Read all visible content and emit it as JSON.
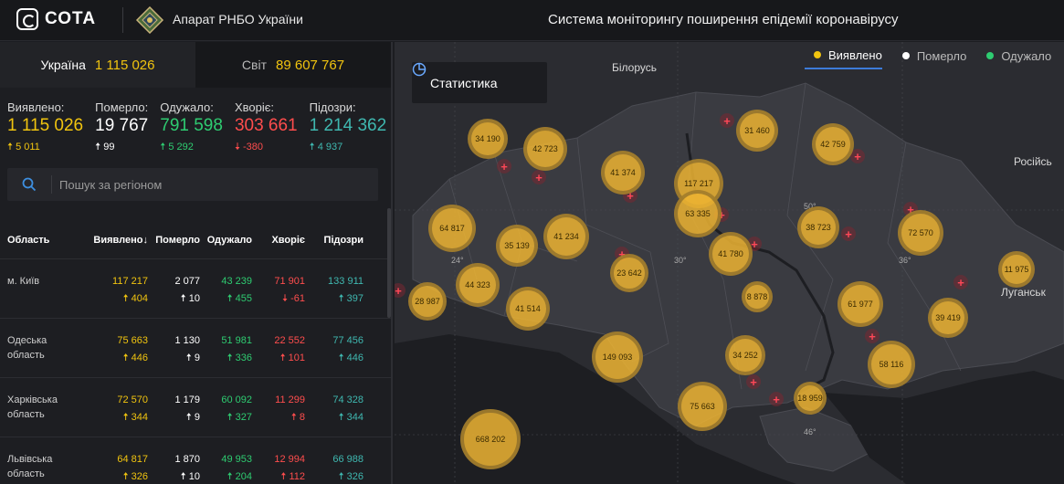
{
  "header": {
    "logo_text": "СОТА",
    "org": "Апарат РНБО України",
    "title": "Система моніторингу поширення епідемії коронавірусу"
  },
  "scope_tabs": [
    {
      "label": "Україна",
      "value": "1 115 026",
      "active": true
    },
    {
      "label": "Світ",
      "value": "89 607 767",
      "active": false
    }
  ],
  "stats": [
    {
      "title": "Виявлено:",
      "value": "1 115 026",
      "delta": "5 011",
      "dir": "up",
      "color": "#f1c40f"
    },
    {
      "title": "Померло:",
      "value": "19 767",
      "delta": "99",
      "dir": "up",
      "color": "#ffffff"
    },
    {
      "title": "Одужало:",
      "value": "791 598",
      "delta": "5 292",
      "dir": "up",
      "color": "#2ecc71"
    },
    {
      "title": "Хворіє:",
      "value": "303 661",
      "delta": "-380",
      "dir": "down",
      "color": "#ff4d4d"
    },
    {
      "title": "Підозри:",
      "value": "1 214 362",
      "delta": "4 937",
      "dir": "up",
      "color": "#3fb8b0"
    }
  ],
  "search": {
    "placeholder": "Пошук за регіоном"
  },
  "table": {
    "headers": [
      "Область",
      "Виявлено",
      "Померло",
      "Одужало",
      "Хворіє",
      "Підозри"
    ],
    "sort_indicator": "↓",
    "rows": [
      {
        "name": "м. Київ",
        "detected": "117 217",
        "detected_d": "404",
        "died": "2 077",
        "died_d": "10",
        "recovered": "43 239",
        "recovered_d": "455",
        "sick": "71 901",
        "sick_d": "-61",
        "suspected": "133 911",
        "suspected_d": "397"
      },
      {
        "name": "Одеська область",
        "detected": "75 663",
        "detected_d": "446",
        "died": "1 130",
        "died_d": "9",
        "recovered": "51 981",
        "recovered_d": "336",
        "sick": "22 552",
        "sick_d": "101",
        "suspected": "77 456",
        "suspected_d": "446"
      },
      {
        "name": "Харківська область",
        "detected": "72 570",
        "detected_d": "344",
        "died": "1 179",
        "died_d": "9",
        "recovered": "60 092",
        "recovered_d": "327",
        "sick": "11 299",
        "sick_d": "8",
        "suspected": "74 328",
        "suspected_d": "344"
      },
      {
        "name": "Львівська область",
        "detected": "64 817",
        "detected_d": "326",
        "died": "1 870",
        "died_d": "10",
        "recovered": "49 953",
        "recovered_d": "204",
        "sick": "12 994",
        "sick_d": "112",
        "suspected": "66 988",
        "suspected_d": "326"
      }
    ]
  },
  "map": {
    "stats_button": "Статистика",
    "legend": [
      {
        "label": "Виявлено",
        "color": "#f1c40f",
        "active": true
      },
      {
        "label": "Померло",
        "color": "#ffffff",
        "active": false
      },
      {
        "label": "Одужало",
        "color": "#2ecc71",
        "active": false
      }
    ],
    "labels": {
      "belarus": "Білорусь",
      "russia": "Російсь",
      "luhansk": "Луганськ",
      "lon24": "24°",
      "lon30": "30°",
      "lon36": "36°",
      "lat50": "50°",
      "lat46": "46°"
    },
    "bubbles": [
      "34 190",
      "42 723",
      "41 374",
      "117 217",
      "31 460",
      "42 759",
      "63 335",
      "64 817",
      "35 139",
      "41 234",
      "38 723",
      "72 570",
      "41 780",
      "23 642",
      "44 323",
      "11 975",
      "28 987",
      "41 514",
      "8 878",
      "61 977",
      "39 419",
      "149 093",
      "34 252",
      "58 116",
      "75 663",
      "18 959",
      "668 202"
    ]
  }
}
